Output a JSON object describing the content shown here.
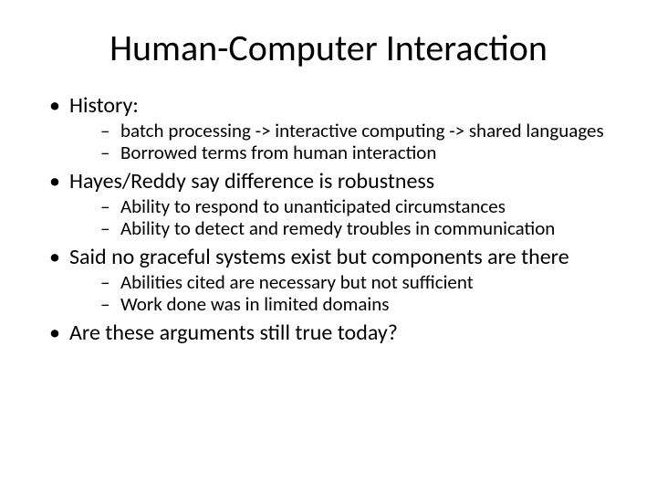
{
  "slide": {
    "background_color": "#ffffff",
    "text_color": "#000000",
    "font_family": "Calibri",
    "title": {
      "text": "Human-Computer Interaction",
      "fontsize": 40,
      "align": "center"
    },
    "bullets": [
      {
        "text": "History:",
        "fontsize": 24,
        "sub": [
          {
            "text": "batch processing -> interactive computing -> shared languages",
            "fontsize": 21
          },
          {
            "text": "Borrowed terms from human interaction",
            "fontsize": 21
          }
        ]
      },
      {
        "text": "Hayes/Reddy say difference is robustness",
        "fontsize": 24,
        "sub": [
          {
            "text": "Ability to respond to unanticipated circumstances",
            "fontsize": 21
          },
          {
            "text": "Ability to detect and remedy troubles in communication",
            "fontsize": 21
          }
        ]
      },
      {
        "text": "Said no graceful systems exist but components are there",
        "fontsize": 24,
        "sub": [
          {
            "text": "Abilities cited are necessary but not sufficient",
            "fontsize": 21
          },
          {
            "text": "Work done was in limited domains",
            "fontsize": 21
          }
        ]
      },
      {
        "text": "Are these arguments still true today?",
        "fontsize": 24,
        "sub": []
      }
    ]
  }
}
